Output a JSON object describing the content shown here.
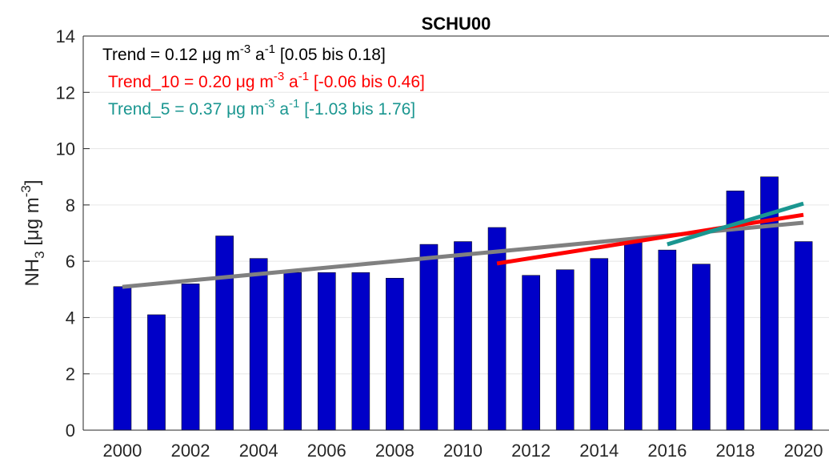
{
  "chart_data": {
    "type": "bar",
    "title": "SCHU00",
    "ylabel": [
      "NH",
      "3",
      " [μg m",
      "-3",
      "]"
    ],
    "x": [
      2000,
      2001,
      2002,
      2003,
      2004,
      2005,
      2006,
      2007,
      2008,
      2009,
      2010,
      2011,
      2012,
      2013,
      2014,
      2015,
      2016,
      2017,
      2018,
      2019,
      2020
    ],
    "values": [
      5.1,
      4.1,
      5.2,
      6.9,
      6.1,
      5.6,
      5.6,
      5.6,
      5.4,
      6.6,
      6.7,
      7.2,
      5.5,
      5.7,
      6.1,
      6.7,
      6.4,
      5.9,
      8.5,
      9.0,
      6.7
    ],
    "color": "#0000c8",
    "xlim": [
      1998.85,
      2020.75
    ],
    "xticks": [
      2000,
      2002,
      2004,
      2006,
      2008,
      2010,
      2012,
      2014,
      2016,
      2018,
      2020
    ],
    "ylim": [
      0,
      14
    ],
    "yticks": [
      0,
      2,
      4,
      6,
      8,
      10,
      12,
      14
    ],
    "grid": true,
    "trend_lines": [
      {
        "x": [
          2000,
          2020
        ],
        "values": [
          5.09,
          7.37
        ],
        "color": "#808080"
      },
      {
        "x": [
          2011,
          2020
        ],
        "values": [
          5.92,
          7.65
        ],
        "color": "#ff0000"
      },
      {
        "x": [
          2016,
          2020
        ],
        "values": [
          6.6,
          8.05
        ],
        "color": "#1a9690"
      }
    ],
    "annotations": [
      {
        "color": "#000000",
        "parts": [
          "Trend = 0.12 μg m",
          "-3",
          " a",
          "-1",
          " [0.05 bis 0.18]"
        ]
      },
      {
        "color": "#ff0000",
        "parts": [
          "Trend_10 = 0.20 μg m",
          "-3",
          " a",
          "-1",
          " [-0.06 bis 0.46]"
        ]
      },
      {
        "color": "#1a9690",
        "parts": [
          "Trend_5 = 0.37 μg m",
          "-3",
          " a",
          "-1",
          " [-1.03 bis 1.76]"
        ]
      }
    ]
  }
}
